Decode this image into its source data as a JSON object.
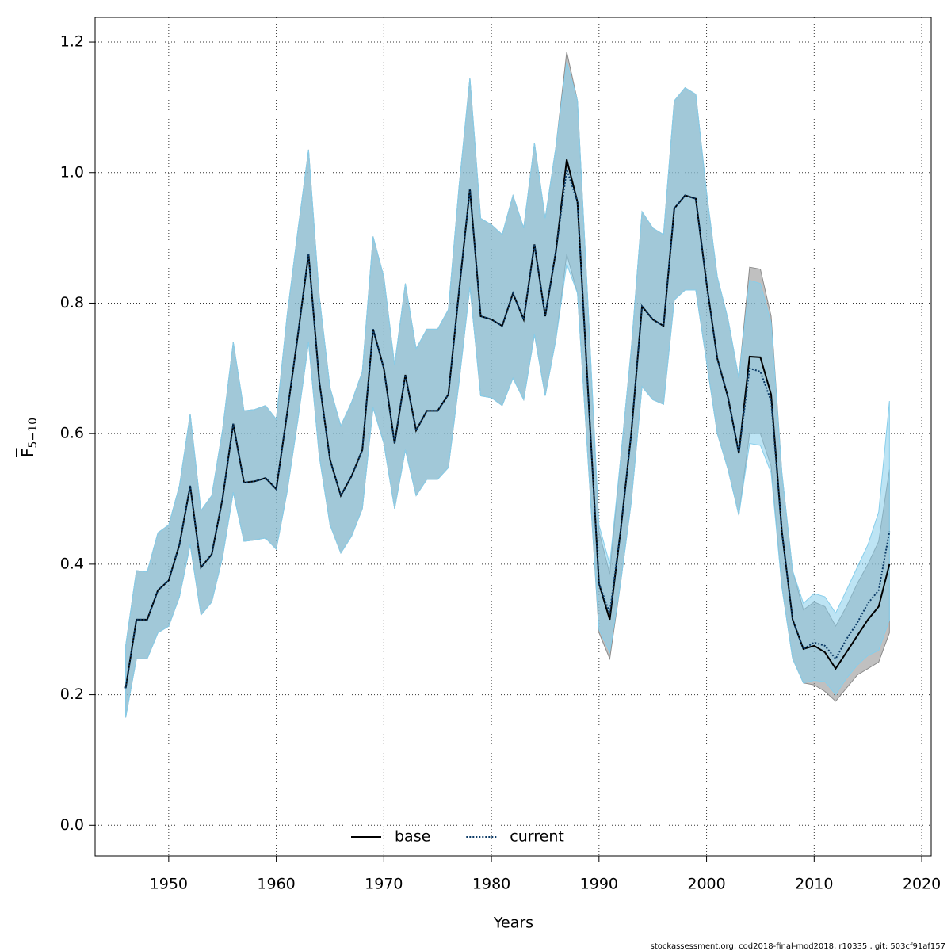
{
  "chart_data": {
    "type": "line",
    "xlabel": "Years",
    "ylabel": "F",
    "ylabel_sub": "5−10",
    "footer": "stockassessment.org, cod2018-final-mod2018, r10335 , git: 503cf91af157",
    "x": [
      1946,
      1947,
      1948,
      1949,
      1950,
      1951,
      1952,
      1953,
      1954,
      1955,
      1956,
      1957,
      1958,
      1959,
      1960,
      1961,
      1962,
      1963,
      1964,
      1965,
      1966,
      1967,
      1968,
      1969,
      1970,
      1971,
      1972,
      1973,
      1974,
      1975,
      1976,
      1977,
      1978,
      1979,
      1980,
      1981,
      1982,
      1983,
      1984,
      1985,
      1986,
      1987,
      1988,
      1989,
      1990,
      1991,
      1992,
      1993,
      1994,
      1995,
      1996,
      1997,
      1998,
      1999,
      2000,
      2001,
      2002,
      2003,
      2004,
      2005,
      2006,
      2007,
      2008,
      2009,
      2010,
      2011,
      2012,
      2013,
      2014,
      2015,
      2016,
      2017
    ],
    "series": [
      {
        "name": "base",
        "color": "#000000",
        "dash": "solid",
        "band_color": "#8c8c8c",
        "values": [
          0.21,
          0.315,
          0.315,
          0.36,
          0.375,
          0.43,
          0.52,
          0.395,
          0.415,
          0.5,
          0.615,
          0.525,
          0.527,
          0.532,
          0.515,
          0.63,
          0.75,
          0.875,
          0.68,
          0.56,
          0.505,
          0.535,
          0.575,
          0.76,
          0.7,
          0.585,
          0.69,
          0.605,
          0.635,
          0.635,
          0.66,
          0.82,
          0.975,
          0.78,
          0.775,
          0.765,
          0.815,
          0.775,
          0.89,
          0.78,
          0.88,
          1.02,
          0.955,
          0.66,
          0.37,
          0.315,
          0.45,
          0.6,
          0.795,
          0.775,
          0.765,
          0.945,
          0.965,
          0.96,
          0.83,
          0.715,
          0.655,
          0.57,
          0.718,
          0.717,
          0.66,
          0.45,
          0.315,
          0.27,
          0.275,
          0.265,
          0.24,
          0.265,
          0.29,
          0.315,
          0.335,
          0.4
        ],
        "upper": [
          0.275,
          0.39,
          0.388,
          0.448,
          0.46,
          0.52,
          0.63,
          0.482,
          0.505,
          0.605,
          0.74,
          0.635,
          0.637,
          0.643,
          0.622,
          0.78,
          0.91,
          1.035,
          0.81,
          0.67,
          0.612,
          0.648,
          0.695,
          0.902,
          0.84,
          0.705,
          0.83,
          0.73,
          0.76,
          0.76,
          0.79,
          0.98,
          1.145,
          0.93,
          0.92,
          0.905,
          0.965,
          0.915,
          1.045,
          0.93,
          1.04,
          1.185,
          1.11,
          0.79,
          0.45,
          0.385,
          0.56,
          0.73,
          0.94,
          0.915,
          0.905,
          1.11,
          1.13,
          1.12,
          0.97,
          0.84,
          0.775,
          0.685,
          0.855,
          0.852,
          0.78,
          0.54,
          0.39,
          0.33,
          0.342,
          0.335,
          0.305,
          0.335,
          0.37,
          0.4,
          0.435,
          0.545
        ],
        "lower": [
          0.165,
          0.255,
          0.255,
          0.295,
          0.305,
          0.35,
          0.43,
          0.322,
          0.342,
          0.41,
          0.51,
          0.435,
          0.437,
          0.44,
          0.423,
          0.51,
          0.62,
          0.74,
          0.565,
          0.46,
          0.417,
          0.443,
          0.485,
          0.64,
          0.585,
          0.485,
          0.575,
          0.505,
          0.53,
          0.53,
          0.548,
          0.68,
          0.825,
          0.658,
          0.655,
          0.643,
          0.685,
          0.652,
          0.752,
          0.658,
          0.745,
          0.875,
          0.815,
          0.555,
          0.295,
          0.255,
          0.37,
          0.495,
          0.672,
          0.652,
          0.645,
          0.805,
          0.82,
          0.82,
          0.71,
          0.6,
          0.545,
          0.475,
          0.6,
          0.6,
          0.55,
          0.365,
          0.255,
          0.218,
          0.215,
          0.205,
          0.19,
          0.21,
          0.23,
          0.24,
          0.25,
          0.295
        ]
      },
      {
        "name": "current",
        "color": "#0b3a66",
        "dash": "dotted",
        "band_color": "#87ceeb",
        "values": [
          0.21,
          0.315,
          0.315,
          0.36,
          0.375,
          0.43,
          0.52,
          0.395,
          0.415,
          0.5,
          0.615,
          0.525,
          0.527,
          0.532,
          0.515,
          0.63,
          0.75,
          0.875,
          0.68,
          0.56,
          0.505,
          0.535,
          0.575,
          0.76,
          0.7,
          0.585,
          0.69,
          0.605,
          0.635,
          0.635,
          0.66,
          0.82,
          0.975,
          0.78,
          0.775,
          0.765,
          0.815,
          0.775,
          0.89,
          0.78,
          0.88,
          1.005,
          0.955,
          0.66,
          0.37,
          0.325,
          0.45,
          0.6,
          0.795,
          0.775,
          0.765,
          0.945,
          0.965,
          0.96,
          0.83,
          0.715,
          0.655,
          0.57,
          0.7,
          0.695,
          0.65,
          0.45,
          0.315,
          0.27,
          0.28,
          0.275,
          0.255,
          0.285,
          0.31,
          0.34,
          0.36,
          0.45
        ],
        "upper": [
          0.275,
          0.39,
          0.388,
          0.448,
          0.46,
          0.52,
          0.63,
          0.482,
          0.505,
          0.605,
          0.74,
          0.635,
          0.637,
          0.643,
          0.622,
          0.78,
          0.91,
          1.035,
          0.81,
          0.67,
          0.612,
          0.648,
          0.695,
          0.902,
          0.84,
          0.705,
          0.83,
          0.73,
          0.76,
          0.76,
          0.79,
          0.98,
          1.145,
          0.93,
          0.92,
          0.905,
          0.965,
          0.915,
          1.045,
          0.93,
          1.04,
          1.17,
          1.11,
          0.79,
          0.46,
          0.4,
          0.56,
          0.73,
          0.94,
          0.915,
          0.905,
          1.11,
          1.13,
          1.12,
          0.97,
          0.84,
          0.775,
          0.685,
          0.835,
          0.83,
          0.77,
          0.54,
          0.39,
          0.34,
          0.355,
          0.35,
          0.325,
          0.36,
          0.395,
          0.43,
          0.48,
          0.65
        ],
        "lower": [
          0.165,
          0.255,
          0.255,
          0.295,
          0.305,
          0.35,
          0.43,
          0.322,
          0.342,
          0.41,
          0.51,
          0.435,
          0.437,
          0.44,
          0.423,
          0.51,
          0.62,
          0.74,
          0.565,
          0.46,
          0.417,
          0.443,
          0.485,
          0.64,
          0.585,
          0.485,
          0.575,
          0.505,
          0.53,
          0.53,
          0.548,
          0.68,
          0.825,
          0.658,
          0.655,
          0.643,
          0.685,
          0.652,
          0.752,
          0.658,
          0.745,
          0.86,
          0.815,
          0.555,
          0.3,
          0.265,
          0.37,
          0.495,
          0.672,
          0.652,
          0.645,
          0.805,
          0.82,
          0.82,
          0.71,
          0.6,
          0.545,
          0.475,
          0.585,
          0.582,
          0.54,
          0.365,
          0.255,
          0.218,
          0.222,
          0.22,
          0.2,
          0.225,
          0.245,
          0.26,
          0.268,
          0.315
        ]
      }
    ],
    "xlim": [
      1943.16,
      2020.88
    ],
    "ylim": [
      -0.047,
      1.2377
    ],
    "xticks": [
      1950,
      1960,
      1970,
      1980,
      1990,
      2000,
      2010,
      2020
    ],
    "yticks": [
      {
        "value": 0,
        "label": "0.0"
      },
      0.2,
      0.4,
      0.6,
      0.8,
      {
        "value": 1,
        "label": "1.0"
      },
      1.2
    ],
    "grid": true,
    "legend": "bottom"
  }
}
